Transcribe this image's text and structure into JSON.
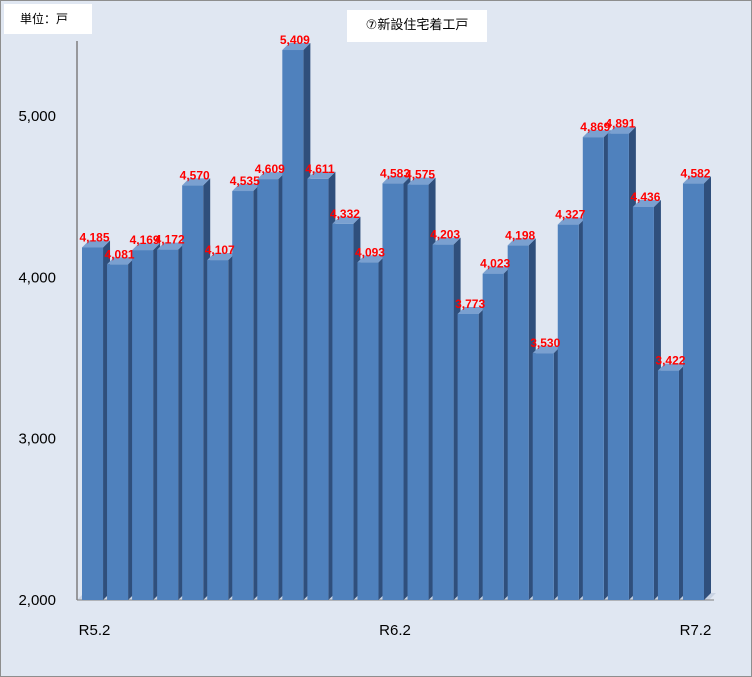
{
  "unit_label": "単位：戸",
  "chart_data": {
    "type": "bar",
    "title": "⑦新設住宅着工戸",
    "xlabel": "",
    "ylabel": "",
    "ylim": [
      2000,
      5500
    ],
    "yticks": [
      2000,
      3000,
      4000,
      5000
    ],
    "ytick_labels": [
      "2,000",
      "3,000",
      "4,000",
      "5,000"
    ],
    "categories": [
      "R5.2",
      "",
      "",
      "",
      "",
      "",
      "",
      "",
      "",
      "",
      "",
      "",
      "R6.2",
      "",
      "",
      "",
      "",
      "",
      "",
      "",
      "",
      "",
      "",
      "",
      "R7.2"
    ],
    "values": [
      4185,
      4081,
      4169,
      4172,
      4570,
      4107,
      4535,
      4609,
      5409,
      4611,
      4332,
      4093,
      4583,
      4575,
      4203,
      3773,
      4023,
      4198,
      3530,
      4327,
      4869,
      4891,
      4436,
      3422,
      4582
    ],
    "value_labels": [
      "4,185",
      "4,081",
      "4,169",
      "4,172",
      "4,570",
      "4,107",
      "4,535",
      "4,609",
      "5,409",
      "4,611",
      "4,332",
      "4,093",
      "4,583",
      "4,575",
      "4,203",
      "3,773",
      "4,023",
      "4,198",
      "3,530",
      "4,327",
      "4,869",
      "4,891",
      "4,436",
      "3,422",
      "4,582"
    ],
    "bar_color": "#4f81bd",
    "bar_top_color": "#7aa0d0",
    "bar_side_color": "#2f4f7c",
    "label_color": "#ff0000",
    "background_color": "#e0e7f2",
    "grid": false,
    "legend": "none"
  }
}
